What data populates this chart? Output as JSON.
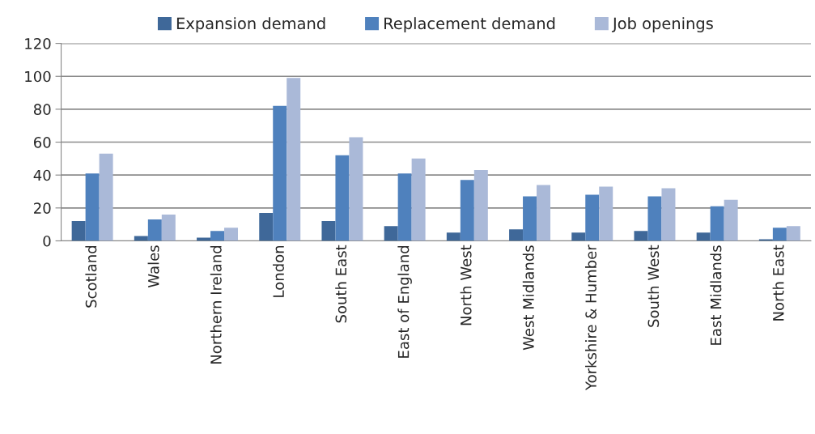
{
  "chart_data": {
    "type": "bar",
    "categories": [
      "Scotland",
      "Wales",
      "Northern Ireland",
      "London",
      "South East",
      "East of England",
      "North West",
      "West Midlands",
      "Yorkshire & Humber",
      "South West",
      "East Midlands",
      "North East"
    ],
    "series": [
      {
        "name": "Expansion demand",
        "color": "#3f6899",
        "values": [
          12,
          3,
          2,
          17,
          12,
          9,
          5,
          7,
          5,
          6,
          5,
          1
        ]
      },
      {
        "name": "Replacement demand",
        "color": "#4f81bd",
        "values": [
          41,
          13,
          6,
          82,
          52,
          41,
          37,
          27,
          28,
          27,
          21,
          8
        ]
      },
      {
        "name": "Job openings",
        "color": "#aab9d8",
        "values": [
          53,
          16,
          8,
          99,
          63,
          50,
          43,
          34,
          33,
          32,
          25,
          9
        ]
      }
    ],
    "ylim": [
      0,
      120
    ],
    "yticks": [
      0,
      20,
      40,
      60,
      80,
      100,
      120
    ],
    "grid": "y",
    "legend": "top"
  }
}
